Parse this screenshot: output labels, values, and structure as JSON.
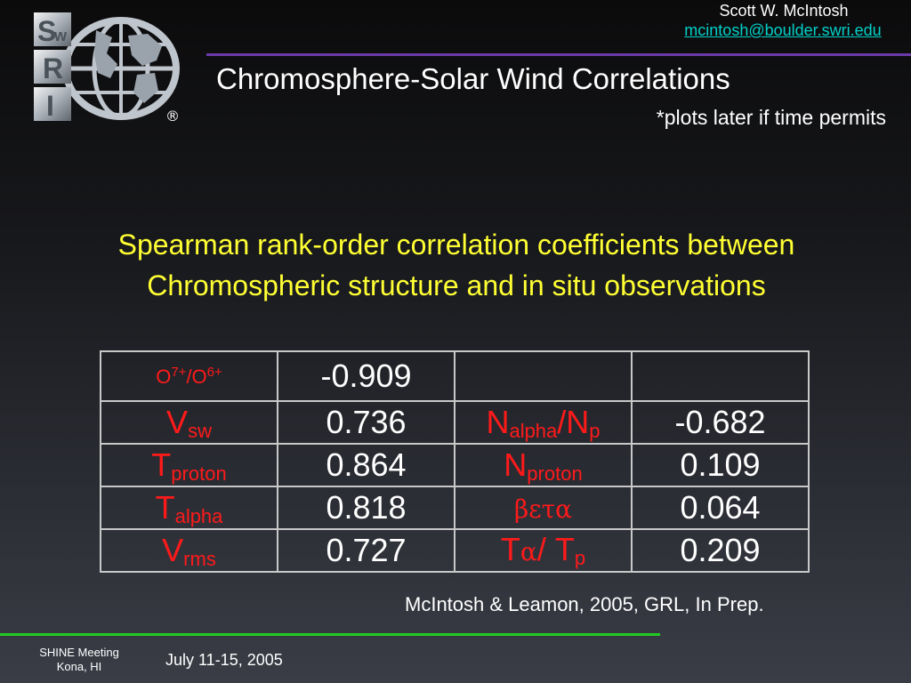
{
  "logo": {
    "letters": [
      "S",
      "w",
      "R",
      "I"
    ],
    "registered": "®"
  },
  "header": {
    "author": "Scott W. McIntosh",
    "email": "mcintosh@boulder.swri.edu",
    "title": "Chromosphere-Solar Wind Correlations",
    "note": "*plots later if time permits"
  },
  "heading": {
    "line1": "Spearman rank-order correlation coefficients between",
    "line2": "Chromospheric structure and in situ observations"
  },
  "table": {
    "rows": [
      {
        "left_label": {
          "base": "O",
          "sup": "7+",
          "base2": "/O",
          "sup2": "6+"
        },
        "left_value": "-0.909",
        "right_label": "",
        "right_value": ""
      },
      {
        "left_label": {
          "base": "V",
          "sub": "sw"
        },
        "left_value": "0.736",
        "right_label": {
          "base": "N",
          "sub": "alpha",
          "base2": "/N",
          "sub2": "p"
        },
        "right_value": "-0.682"
      },
      {
        "left_label": {
          "base": "T",
          "sub": "proton"
        },
        "left_value": "0.864",
        "right_label": {
          "base": "N",
          "sub": "proton"
        },
        "right_value": "0.109"
      },
      {
        "left_label": {
          "base": "T",
          "sub": "alpha"
        },
        "left_value": "0.818",
        "right_label": {
          "symbol": "βετα"
        },
        "right_value": "0.064"
      },
      {
        "left_label": {
          "base": "V",
          "sub": "rms"
        },
        "left_value": "0.727",
        "right_label": {
          "base": "T",
          "sym": "α",
          "base2": "/ T",
          "sub2": "p"
        },
        "right_value": "0.209"
      }
    ]
  },
  "citation": "McIntosh & Leamon, 2005, GRL, In Prep.",
  "footer": {
    "meeting_line1": "SHINE Meeting",
    "meeting_line2": "Kona, HI",
    "date": "July 11-15, 2005"
  },
  "colors": {
    "label_red": "#ff1a1a",
    "heading_yellow": "#ffff33",
    "link_cyan": "#00d0c8",
    "title_rule_purple": "#6a3aa8",
    "footer_rule_green": "#22cc22"
  }
}
